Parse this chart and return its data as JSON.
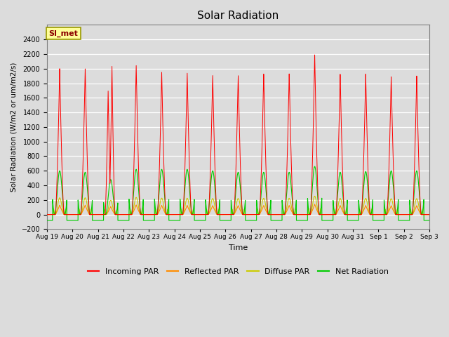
{
  "title": "Solar Radiation",
  "ylabel": "Solar Radiation (W/m2 or um/m2/s)",
  "xlabel": "Time",
  "ylim": [
    -200,
    2600
  ],
  "yticks": [
    -200,
    0,
    200,
    400,
    600,
    800,
    1000,
    1200,
    1400,
    1600,
    1800,
    2000,
    2200,
    2400
  ],
  "annotation_text": "SI_met",
  "annotation_bg": "#FFFF99",
  "annotation_border": "#999900",
  "bg_color": "#DCDCDC",
  "line_colors": {
    "incoming": "#FF0000",
    "reflected": "#FF8C00",
    "diffuse": "#CCCC00",
    "net": "#00CC00"
  },
  "legend_labels": [
    "Incoming PAR",
    "Reflected PAR",
    "Diffuse PAR",
    "Net Radiation"
  ],
  "x_tick_labels": [
    "Aug 19",
    "Aug 20",
    "Aug 21",
    "Aug 22",
    "Aug 23",
    "Aug 24",
    "Aug 25",
    "Aug 26",
    "Aug 27",
    "Aug 28",
    "Aug 29",
    "Aug 30",
    "Aug 31",
    "Sep 1",
    "Sep 2",
    "Sep 3"
  ],
  "incoming_peaks": [
    2000,
    2000,
    1700,
    2050,
    1960,
    1950,
    1920,
    1920,
    1940,
    1940,
    2200,
    1930,
    1930,
    1890,
    1900
  ],
  "net_peaks": [
    600,
    580,
    480,
    620,
    620,
    620,
    600,
    580,
    580,
    580,
    660,
    580,
    590,
    600,
    600
  ],
  "n_days": 15,
  "n_points_per_day": 500
}
